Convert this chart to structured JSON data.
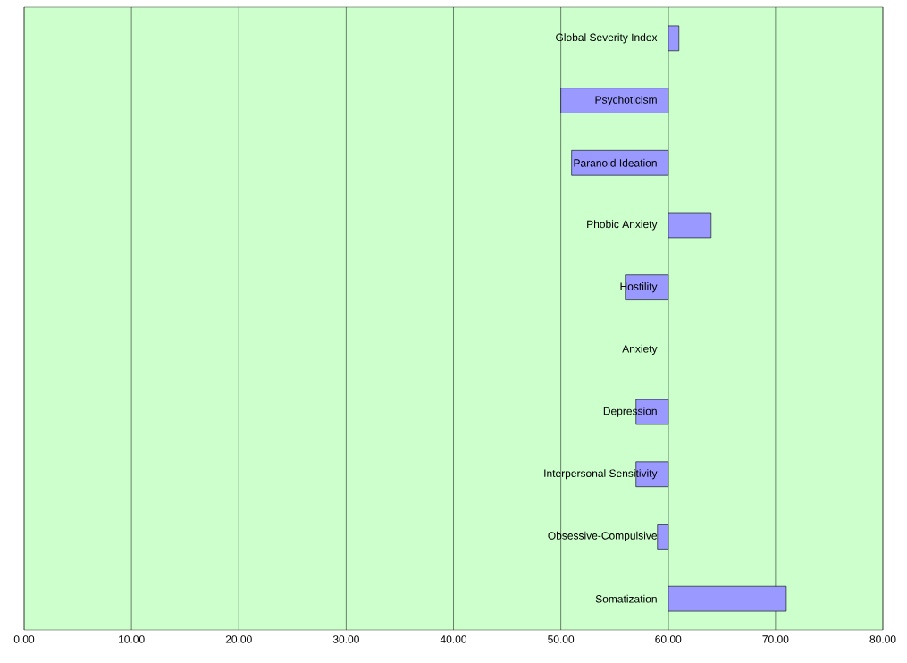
{
  "chart_data": {
    "type": "bar",
    "orientation": "horizontal",
    "categories": [
      "Global Severity Index",
      "Psychoticism",
      "Paranoid Ideation",
      "Phobic Anxiety",
      "Hostility",
      "Anxiety",
      "Depression",
      "Interpersonal Sensitivity",
      "Obsessive-Compulsive",
      "Somatization"
    ],
    "base": [
      60,
      60,
      60,
      60,
      60,
      null,
      60,
      60,
      60,
      60
    ],
    "values": [
      1,
      -10,
      -9,
      4,
      -4,
      null,
      -3,
      -3,
      -1,
      11
    ],
    "color": "#9999ff",
    "xlim": [
      0,
      80
    ],
    "xticks": [
      {
        "value": 0,
        "label": "0.00"
      },
      {
        "value": 10,
        "label": "10.00"
      },
      {
        "value": 20,
        "label": "20.00"
      },
      {
        "value": 30,
        "label": "30.00"
      },
      {
        "value": 40,
        "label": "40.00"
      },
      {
        "value": 50,
        "label": "50.00"
      },
      {
        "value": 60,
        "label": "60.00"
      },
      {
        "value": 70,
        "label": "70.00"
      },
      {
        "value": 80,
        "label": "80.00"
      }
    ],
    "grid": "x"
  }
}
